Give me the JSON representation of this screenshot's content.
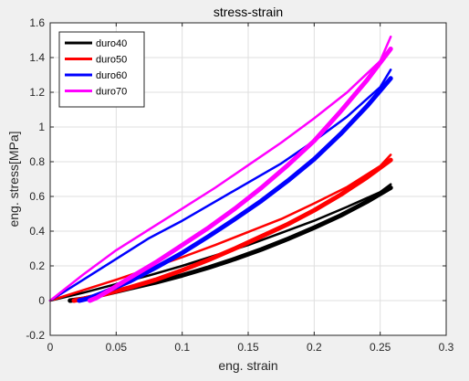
{
  "chart_data": {
    "type": "line",
    "title": "stress-strain",
    "xlabel": "eng. strain",
    "ylabel": "eng. stress[MPa]",
    "xlim": [
      0,
      0.3
    ],
    "ylim": [
      -0.2,
      1.6
    ],
    "xticks": [
      0,
      0.05,
      0.1,
      0.15,
      0.2,
      0.25,
      0.3
    ],
    "xtick_labels": [
      "0",
      "0.05",
      "0.1",
      "0.15",
      "0.2",
      "0.25",
      "0.3"
    ],
    "yticks": [
      -0.2,
      0,
      0.2,
      0.4,
      0.6,
      0.8,
      1,
      1.2,
      1.4,
      1.6
    ],
    "ytick_labels": [
      "-0.2",
      "0",
      "0.2",
      "0.4",
      "0.6",
      "0.8",
      "1",
      "1.2",
      "1.4",
      "1.6"
    ],
    "grid": true,
    "legend_position": "top-left",
    "series": [
      {
        "name": "duro40",
        "color": "#000000",
        "loading": {
          "x": [
            0,
            0.025,
            0.05,
            0.075,
            0.1,
            0.125,
            0.15,
            0.175,
            0.2,
            0.225,
            0.25,
            0.258
          ],
          "y": [
            0,
            0.045,
            0.095,
            0.145,
            0.2,
            0.26,
            0.32,
            0.39,
            0.46,
            0.54,
            0.625,
            0.67
          ]
        },
        "unloading": {
          "x": [
            0.258,
            0.24,
            0.22,
            0.2,
            0.18,
            0.16,
            0.14,
            0.12,
            0.1,
            0.08,
            0.06,
            0.04,
            0.025,
            0.015
          ],
          "y": [
            0.65,
            0.57,
            0.49,
            0.42,
            0.355,
            0.295,
            0.24,
            0.19,
            0.145,
            0.105,
            0.07,
            0.035,
            0.01,
            0
          ]
        }
      },
      {
        "name": "duro50",
        "color": "#ff0000",
        "loading": {
          "x": [
            0,
            0.025,
            0.05,
            0.075,
            0.1,
            0.125,
            0.15,
            0.175,
            0.2,
            0.225,
            0.25,
            0.258
          ],
          "y": [
            0,
            0.06,
            0.12,
            0.185,
            0.25,
            0.32,
            0.395,
            0.47,
            0.56,
            0.655,
            0.775,
            0.84
          ]
        },
        "unloading": {
          "x": [
            0.258,
            0.24,
            0.22,
            0.2,
            0.18,
            0.16,
            0.14,
            0.12,
            0.1,
            0.08,
            0.06,
            0.04,
            0.025,
            0.018
          ],
          "y": [
            0.81,
            0.71,
            0.61,
            0.52,
            0.44,
            0.37,
            0.3,
            0.235,
            0.175,
            0.12,
            0.075,
            0.035,
            0.01,
            0
          ]
        }
      },
      {
        "name": "duro60",
        "color": "#0000ff",
        "loading": {
          "x": [
            0,
            0.025,
            0.05,
            0.075,
            0.1,
            0.125,
            0.15,
            0.175,
            0.2,
            0.225,
            0.25,
            0.258
          ],
          "y": [
            0,
            0.12,
            0.24,
            0.36,
            0.46,
            0.57,
            0.68,
            0.79,
            0.92,
            1.06,
            1.23,
            1.33
          ]
        },
        "unloading": {
          "x": [
            0.258,
            0.24,
            0.22,
            0.2,
            0.18,
            0.16,
            0.14,
            0.12,
            0.1,
            0.08,
            0.06,
            0.04,
            0.028,
            0.022
          ],
          "y": [
            1.28,
            1.12,
            0.96,
            0.815,
            0.69,
            0.575,
            0.47,
            0.37,
            0.275,
            0.19,
            0.11,
            0.045,
            0.01,
            0
          ]
        }
      },
      {
        "name": "duro70",
        "color": "#ff00ff",
        "loading": {
          "x": [
            0,
            0.025,
            0.05,
            0.075,
            0.1,
            0.125,
            0.15,
            0.175,
            0.2,
            0.225,
            0.25,
            0.258
          ],
          "y": [
            0,
            0.15,
            0.29,
            0.41,
            0.53,
            0.65,
            0.78,
            0.91,
            1.05,
            1.2,
            1.38,
            1.52
          ]
        },
        "unloading": {
          "x": [
            0.258,
            0.24,
            0.22,
            0.2,
            0.18,
            0.16,
            0.14,
            0.12,
            0.1,
            0.08,
            0.06,
            0.045,
            0.035,
            0.03
          ],
          "y": [
            1.45,
            1.27,
            1.09,
            0.92,
            0.78,
            0.65,
            0.53,
            0.42,
            0.32,
            0.22,
            0.13,
            0.06,
            0.015,
            0
          ]
        }
      }
    ]
  }
}
